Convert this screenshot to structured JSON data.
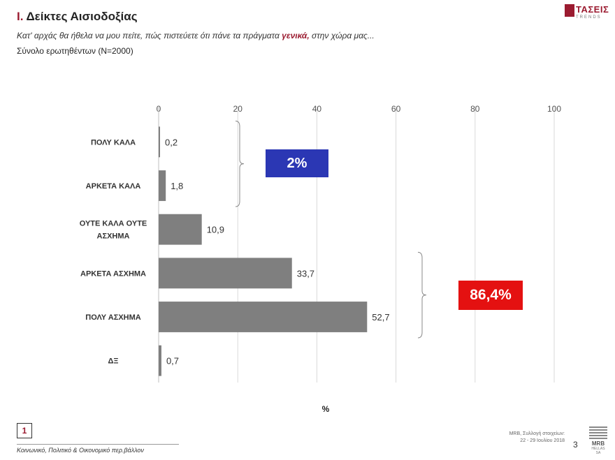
{
  "header": {
    "title_number": "I.",
    "title_text": "Δείκτες Αισιοδοξίας",
    "subtitle_before": "Κατ' αρχάς θα ήθελα να μου πείτε, πώς πιστεύετε ότι πάνε τα πράγματα ",
    "subtitle_highlight": "γενικά,",
    "subtitle_after": " στην χώρα μας...",
    "base_text": "Σύνολο ερωτηθέντων (N=2000)"
  },
  "logo": {
    "name": "ΤΑΣΕΙΣ",
    "tagline": "TRENDS"
  },
  "colors": {
    "bar": "#7f7f7f",
    "accent": "#9b1b30",
    "blue_box": "#2b37b4",
    "red_box": "#e41111"
  },
  "chart_data": {
    "type": "bar",
    "orientation": "horizontal",
    "categories": [
      "ΠΟΛΥ ΚΑΛΑ",
      "ΑΡΚΕΤΑ ΚΑΛΑ",
      "ΟΥΤΕ ΚΑΛΑ ΟΥΤΕ ΑΣΧΗΜΑ",
      "ΑΡΚΕΤΑ ΑΣΧΗΜΑ",
      "ΠΟΛΥ ΑΣΧΗΜΑ",
      "ΔΞ"
    ],
    "category_lines": [
      [
        "ΠΟΛΥ ΚΑΛΑ"
      ],
      [
        "ΑΡΚΕΤΑ ΚΑΛΑ"
      ],
      [
        "ΟΥΤΕ ΚΑΛΑ ΟΥΤΕ",
        "ΑΣΧΗΜΑ"
      ],
      [
        "ΑΡΚΕΤΑ ΑΣΧΗΜΑ"
      ],
      [
        "ΠΟΛΥ ΑΣΧΗΜΑ"
      ],
      [
        "ΔΞ"
      ]
    ],
    "values": [
      0.2,
      1.8,
      10.9,
      33.7,
      52.7,
      0.7
    ],
    "value_labels": [
      "0,2",
      "1,8",
      "10,9",
      "33,7",
      "52,7",
      "0,7"
    ],
    "xlim": [
      0,
      100
    ],
    "xticks": [
      0,
      20,
      40,
      60,
      80,
      100
    ],
    "xlabel": "%",
    "grid": true,
    "annotations": [
      {
        "text": "2%",
        "groups": [
          0,
          1
        ],
        "color": "#2b37b4"
      },
      {
        "text": "86,4%",
        "groups": [
          3,
          4
        ],
        "color": "#e41111"
      }
    ]
  },
  "footer": {
    "page_box": "1",
    "text": "Κοινωνικό, Πολιτικό & Οικονομικό περ.βάλλον",
    "source_line1": "MRB, Συλλογή στοιχείων:",
    "source_line2": "22 - 29 Ιουλίου 2018",
    "page_number": "3",
    "brand": "MRB",
    "brand_sub": "HELLAS SA"
  }
}
